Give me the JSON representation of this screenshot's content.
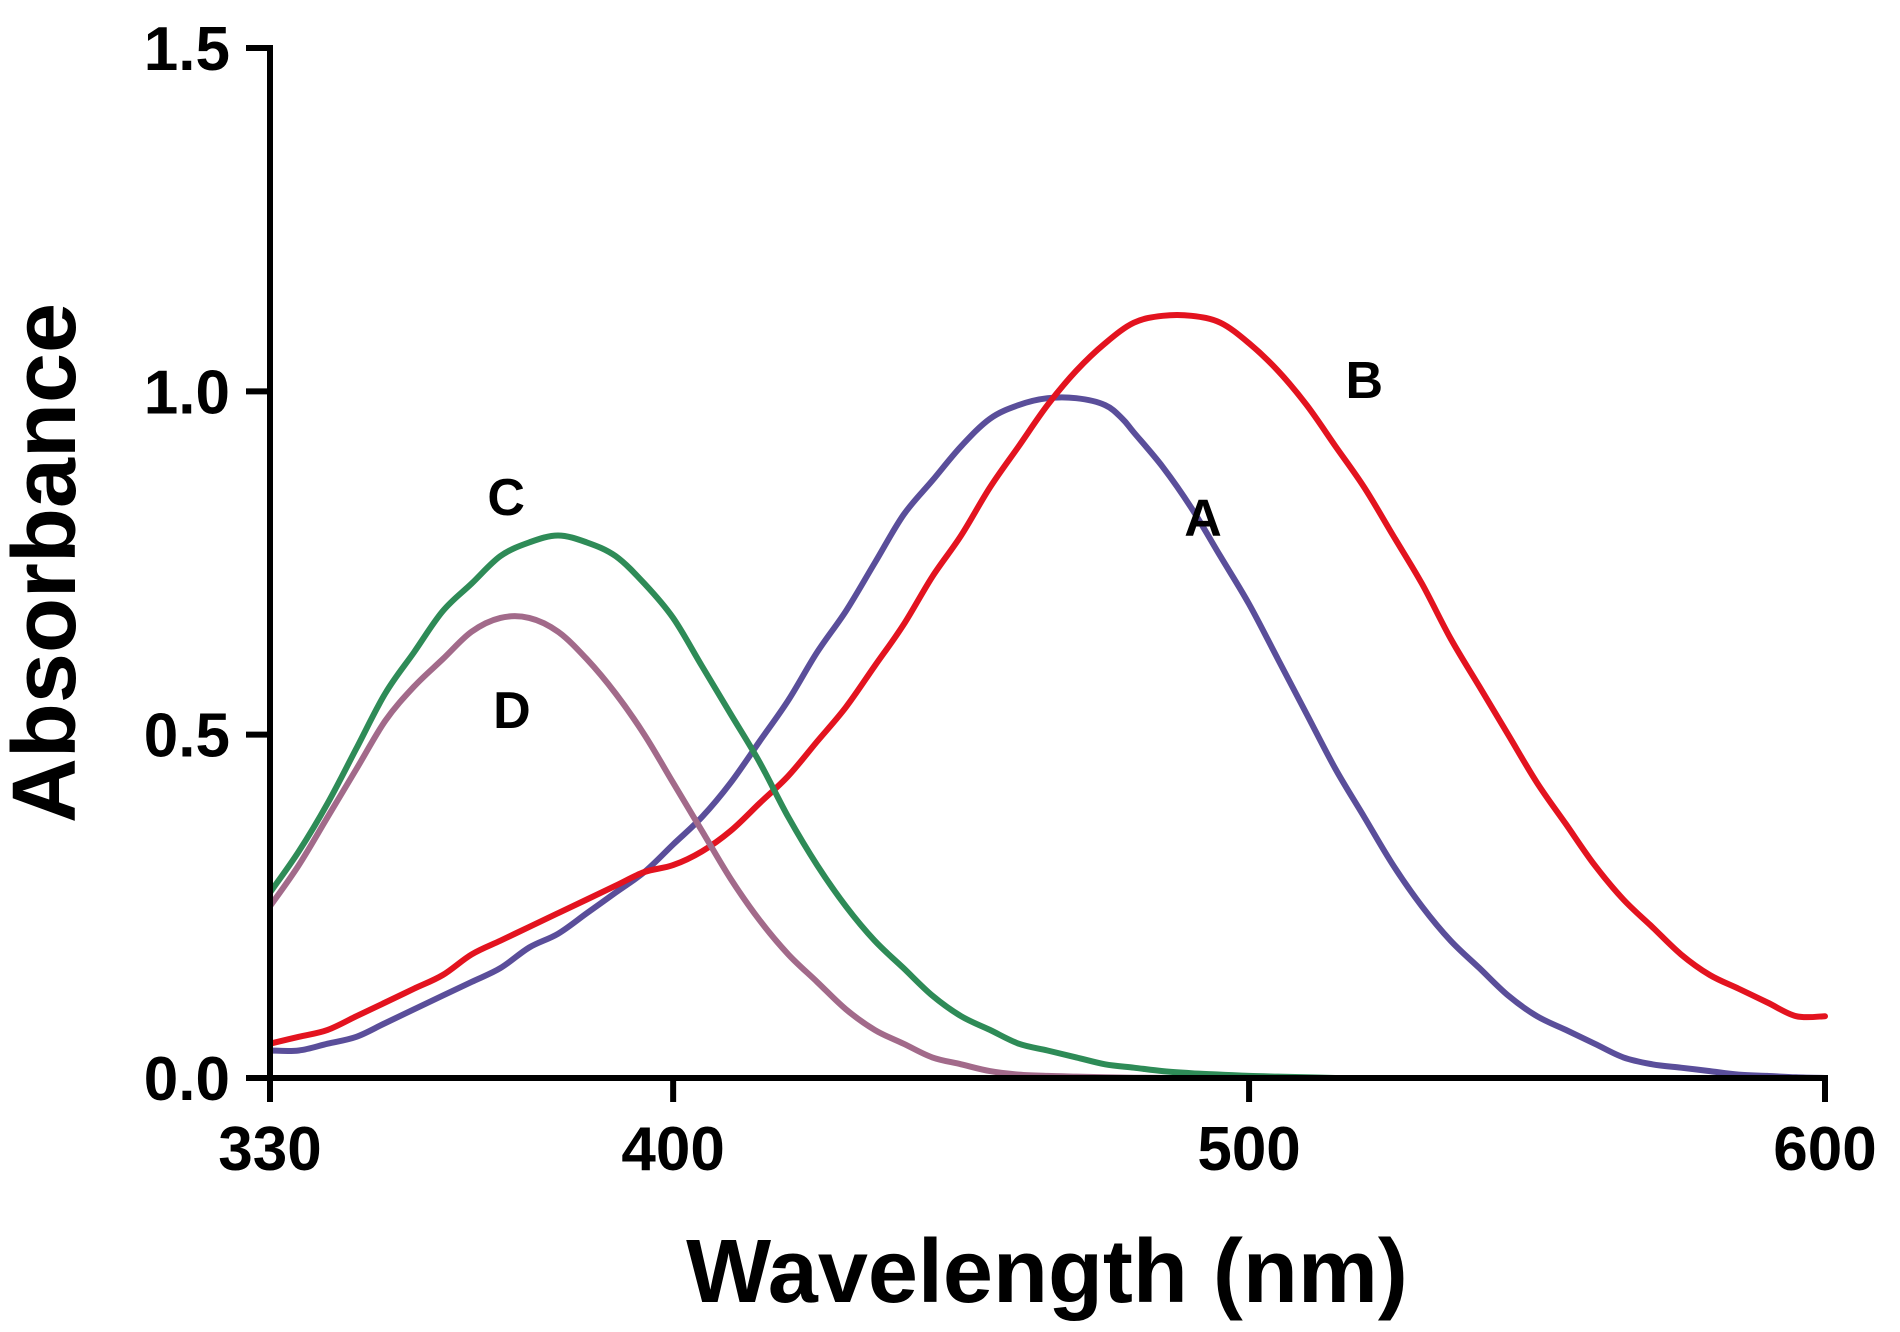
{
  "chart_data": {
    "type": "line",
    "title": "",
    "xlabel": "Wavelength (nm)",
    "ylabel": "Absorbance",
    "xlim": [
      330,
      600
    ],
    "ylim": [
      0,
      1.5
    ],
    "x_ticks": [
      {
        "value": 330,
        "label": "330"
      },
      {
        "value": 400,
        "label": "400"
      },
      {
        "value": 500,
        "label": "500"
      },
      {
        "value": 600,
        "label": "600"
      }
    ],
    "y_ticks": [
      {
        "value": 0.0,
        "label": "0.0"
      },
      {
        "value": 0.5,
        "label": "0.5"
      },
      {
        "value": 1.0,
        "label": "1.0"
      },
      {
        "value": 1.5,
        "label": "1.5"
      }
    ],
    "grid": false,
    "legend": "none",
    "series": [
      {
        "name": "A",
        "color": "#5a4e9a",
        "label_at": [
          492,
          0.79
        ],
        "x": [
          330,
          335,
          340,
          345,
          350,
          355,
          360,
          365,
          370,
          375,
          380,
          385,
          390,
          395,
          400,
          405,
          410,
          415,
          420,
          425,
          430,
          435,
          440,
          445,
          450,
          455,
          460,
          465,
          470,
          475,
          478,
          480,
          485,
          490,
          495,
          500,
          505,
          510,
          515,
          520,
          525,
          530,
          535,
          540,
          545,
          550,
          555,
          560,
          565,
          570,
          575,
          580,
          585,
          590,
          595,
          600
        ],
        "values": [
          0.04,
          0.04,
          0.05,
          0.06,
          0.08,
          0.1,
          0.12,
          0.14,
          0.16,
          0.19,
          0.21,
          0.24,
          0.27,
          0.3,
          0.34,
          0.38,
          0.43,
          0.49,
          0.55,
          0.62,
          0.68,
          0.75,
          0.82,
          0.87,
          0.92,
          0.96,
          0.98,
          0.99,
          0.99,
          0.98,
          0.96,
          0.94,
          0.89,
          0.83,
          0.76,
          0.69,
          0.61,
          0.53,
          0.45,
          0.38,
          0.31,
          0.25,
          0.2,
          0.16,
          0.12,
          0.09,
          0.07,
          0.05,
          0.03,
          0.02,
          0.015,
          0.01,
          0.005,
          0.003,
          0.001,
          0.0
        ]
      },
      {
        "name": "B",
        "color": "#e3131f",
        "label_at": [
          520,
          0.99
        ],
        "x": [
          330,
          335,
          340,
          345,
          350,
          355,
          360,
          365,
          370,
          375,
          380,
          385,
          390,
          395,
          400,
          405,
          410,
          415,
          420,
          425,
          430,
          435,
          440,
          445,
          450,
          455,
          460,
          465,
          470,
          475,
          480,
          485,
          490,
          495,
          500,
          505,
          510,
          515,
          520,
          525,
          530,
          535,
          540,
          545,
          550,
          555,
          560,
          565,
          570,
          575,
          580,
          585,
          590,
          595,
          600
        ],
        "values": [
          0.05,
          0.06,
          0.07,
          0.09,
          0.11,
          0.13,
          0.15,
          0.18,
          0.2,
          0.22,
          0.24,
          0.26,
          0.28,
          0.3,
          0.31,
          0.33,
          0.36,
          0.4,
          0.44,
          0.49,
          0.54,
          0.6,
          0.66,
          0.73,
          0.79,
          0.86,
          0.92,
          0.98,
          1.03,
          1.07,
          1.1,
          1.11,
          1.11,
          1.1,
          1.07,
          1.03,
          0.98,
          0.92,
          0.86,
          0.79,
          0.72,
          0.64,
          0.57,
          0.5,
          0.43,
          0.37,
          0.31,
          0.26,
          0.22,
          0.18,
          0.15,
          0.13,
          0.11,
          0.09,
          0.09
        ]
      },
      {
        "name": "C",
        "color": "#2e8b57",
        "label_at": [
          371,
          0.82
        ],
        "x": [
          330,
          335,
          340,
          345,
          350,
          355,
          360,
          365,
          370,
          375,
          380,
          385,
          390,
          395,
          400,
          405,
          410,
          415,
          420,
          425,
          430,
          435,
          440,
          445,
          450,
          455,
          460,
          465,
          470,
          475,
          480,
          485,
          490,
          495,
          500,
          505,
          510,
          515
        ],
        "values": [
          0.27,
          0.33,
          0.4,
          0.48,
          0.56,
          0.62,
          0.68,
          0.72,
          0.76,
          0.78,
          0.79,
          0.78,
          0.76,
          0.72,
          0.67,
          0.6,
          0.53,
          0.46,
          0.38,
          0.31,
          0.25,
          0.2,
          0.16,
          0.12,
          0.09,
          0.07,
          0.05,
          0.04,
          0.03,
          0.02,
          0.015,
          0.01,
          0.007,
          0.005,
          0.003,
          0.002,
          0.001,
          0.0
        ]
      },
      {
        "name": "D",
        "color": "#a26a8a",
        "label_at": [
          372,
          0.51
        ],
        "x": [
          330,
          335,
          340,
          345,
          350,
          355,
          360,
          365,
          370,
          375,
          380,
          385,
          390,
          395,
          400,
          405,
          410,
          415,
          420,
          425,
          430,
          435,
          440,
          445,
          450,
          455,
          460,
          465,
          470,
          475,
          480,
          485,
          487
        ],
        "values": [
          0.25,
          0.31,
          0.38,
          0.45,
          0.52,
          0.57,
          0.61,
          0.65,
          0.67,
          0.67,
          0.65,
          0.61,
          0.56,
          0.5,
          0.43,
          0.36,
          0.29,
          0.23,
          0.18,
          0.14,
          0.1,
          0.07,
          0.05,
          0.03,
          0.02,
          0.01,
          0.005,
          0.003,
          0.002,
          0.001,
          0.0005,
          0.0001,
          0.0
        ]
      }
    ]
  }
}
